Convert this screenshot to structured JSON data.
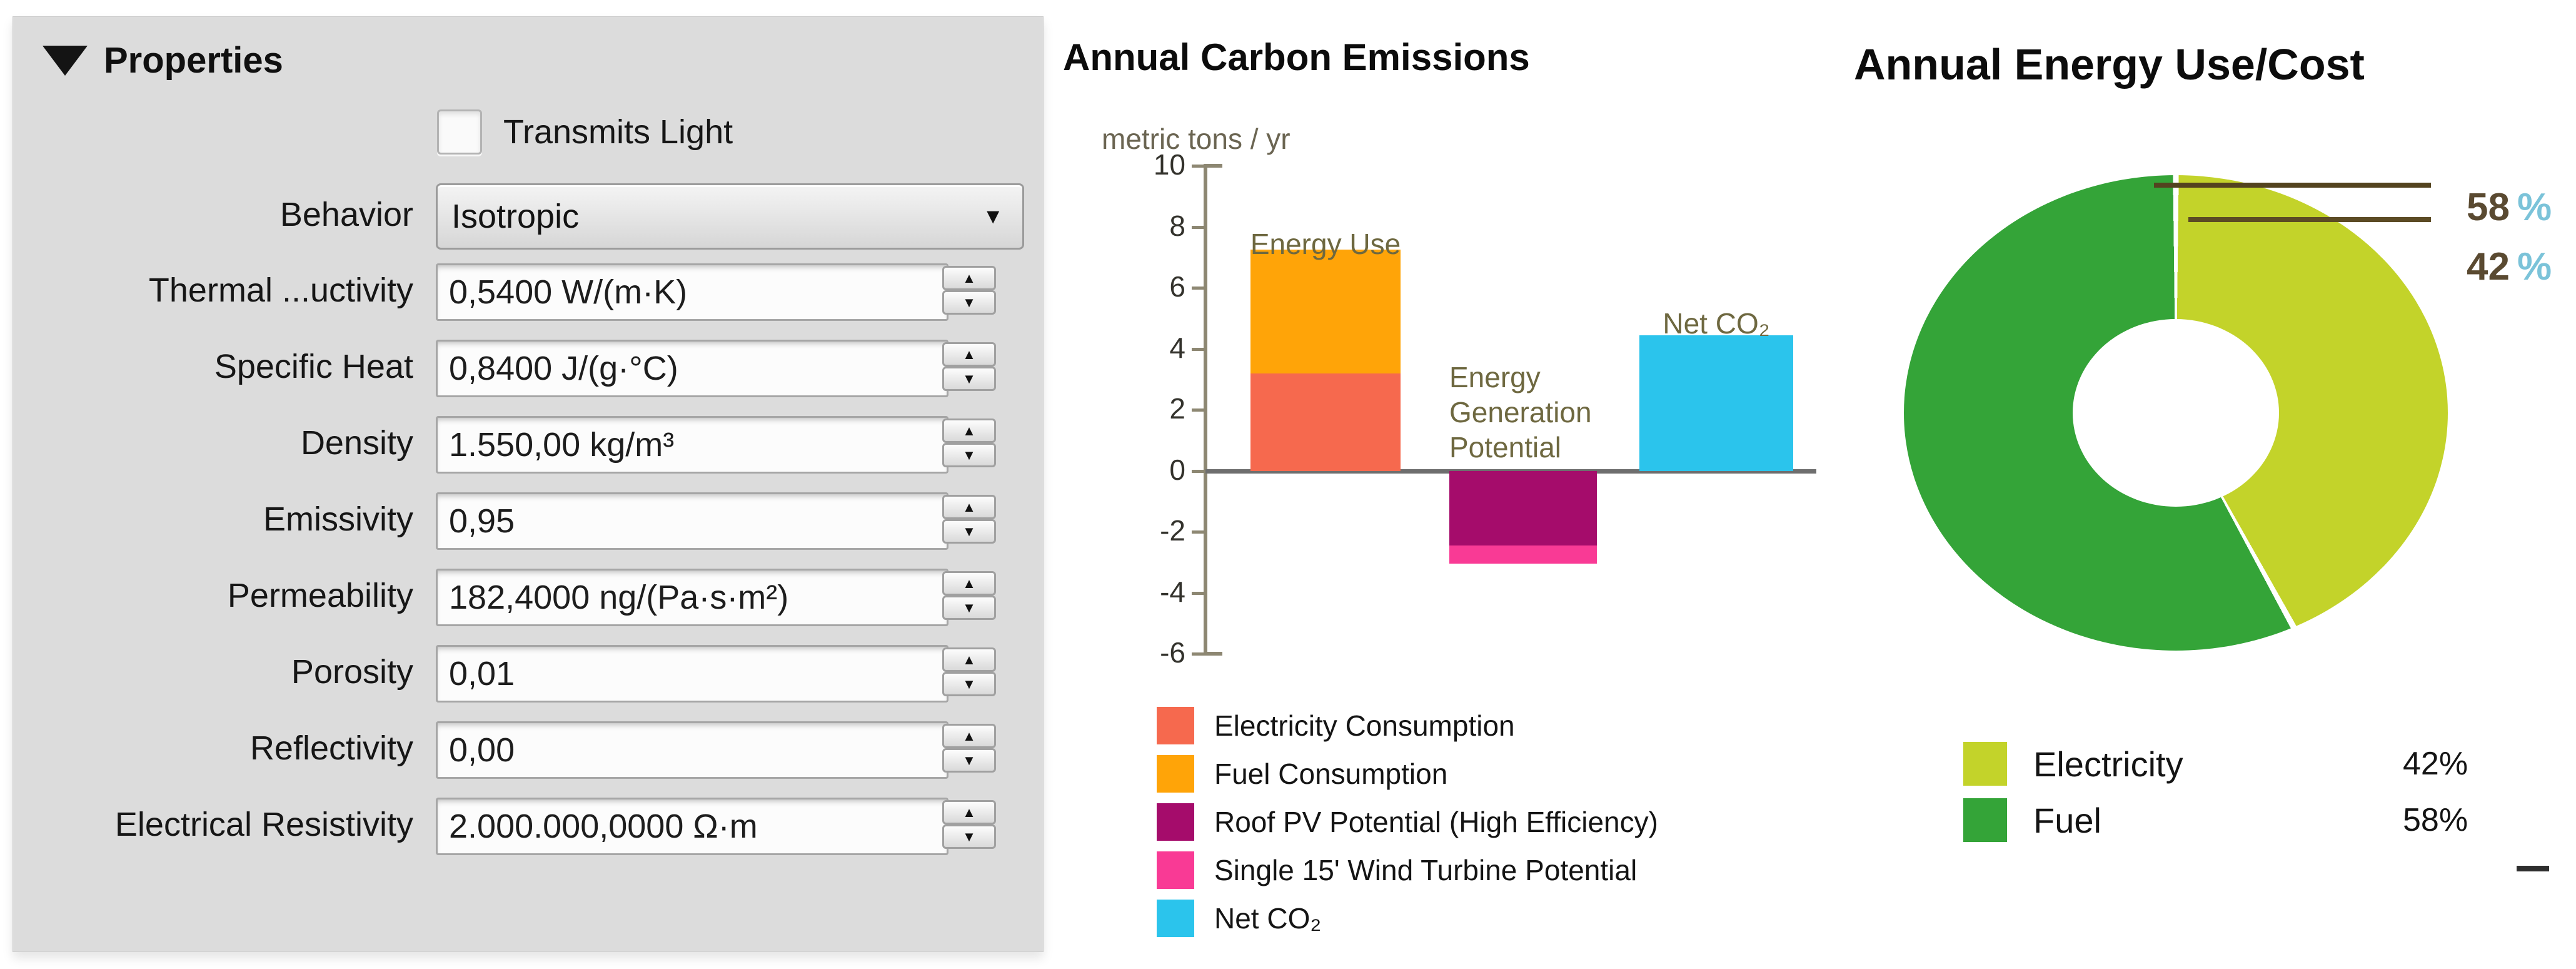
{
  "properties_panel": {
    "header": "Properties",
    "transmits_light_label": "Transmits Light",
    "behavior": {
      "label": "Behavior",
      "value": "Isotropic"
    },
    "fields": [
      {
        "label": "Thermal ...uctivity",
        "value": "0,5400 W/(m·K)"
      },
      {
        "label": "Specific Heat",
        "value": "0,8400 J/(g·°C)"
      },
      {
        "label": "Density",
        "value": "1.550,00 kg/m³"
      },
      {
        "label": "Emissivity",
        "value": "0,95"
      },
      {
        "label": "Permeability",
        "value": "182,4000 ng/(Pa·s·m²)"
      },
      {
        "label": "Porosity",
        "value": "0,01"
      },
      {
        "label": "Reflectivity",
        "value": "0,00"
      },
      {
        "label": "Electrical Resistivity",
        "value": "2.000.000,0000 Ω·m"
      }
    ]
  },
  "icons": {
    "collapse": "▼",
    "dropdown_arrow": "▼",
    "spin_up": "▲",
    "spin_down": "▼"
  },
  "chart_data": [
    {
      "type": "bar",
      "title": "Annual Carbon Emissions",
      "ylabel": "metric tons / yr",
      "ylim": [
        -6,
        10
      ],
      "yticks": [
        10,
        8,
        6,
        4,
        2,
        0,
        -2,
        -4,
        -6
      ],
      "grid": false,
      "zero_line": true,
      "groups": [
        {
          "label": "Energy Use",
          "label_lines": [
            "Energy Use"
          ],
          "segments": [
            {
              "name": "Electricity Consumption",
              "value": 3.2
            },
            {
              "name": "Fuel Consumption",
              "value": 4.05
            }
          ]
        },
        {
          "label": "Energy Generation Potential",
          "label_lines": [
            "Energy",
            "Generation",
            "Potential"
          ],
          "segments": [
            {
              "name": "Roof PV Potential (High Efficiency)",
              "value": -2.45
            },
            {
              "name": "Single 15' Wind Turbine Potential",
              "value": -0.6
            }
          ]
        },
        {
          "label": "Net CO₂",
          "label_lines": [
            "Net CO₂"
          ],
          "segments": [
            {
              "name": "Net CO₂",
              "value": 4.45
            }
          ]
        }
      ],
      "legend": [
        {
          "label": "Electricity Consumption",
          "color": "#f6694e"
        },
        {
          "label": "Fuel Consumption",
          "color": "#ffa408"
        },
        {
          "label": "Roof PV Potential (High Efficiency)",
          "color": "#a50c6b"
        },
        {
          "label": "Single 15' Wind Turbine Potential",
          "color": "#f93a95"
        },
        {
          "label": "Net CO₂",
          "color": "#2bc4ec"
        }
      ],
      "legend_position": "bottom-left"
    },
    {
      "type": "pie",
      "donut": true,
      "title": "Annual Energy Use/Cost",
      "start_angle_deg": 0,
      "slices": [
        {
          "label": "Electricity",
          "pct": 42,
          "color": "#c3d32a"
        },
        {
          "label": "Fuel",
          "pct": 58,
          "color": "#34a438"
        }
      ],
      "callouts": [
        {
          "text": "58",
          "suffix": "%"
        },
        {
          "text": "42",
          "suffix": "%"
        }
      ],
      "legend_position": "bottom"
    }
  ]
}
